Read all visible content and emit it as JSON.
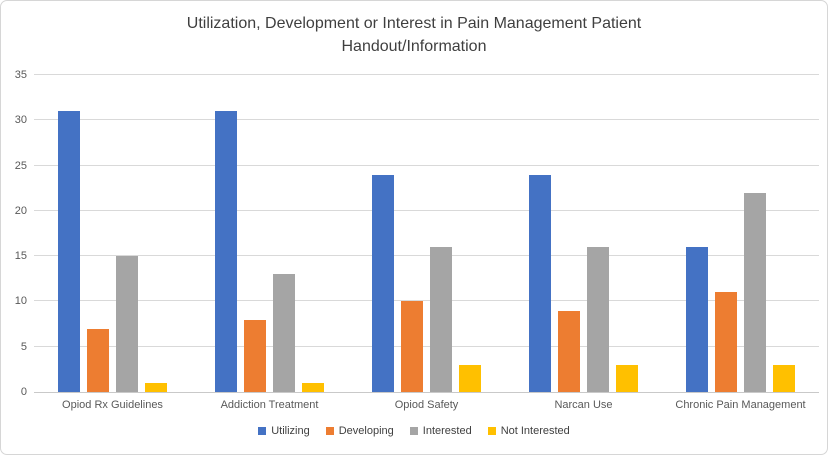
{
  "chart_data": {
    "type": "bar",
    "title": "Utilization, Development or Interest in Pain Management Patient Handout/Information",
    "title_lines": [
      "Utilization, Development or Interest in Pain Management Patient",
      "Handout/Information"
    ],
    "categories": [
      "Opiod Rx Guidelines",
      "Addiction Treatment",
      "Opiod Safety",
      "Narcan Use",
      "Chronic Pain Management"
    ],
    "series": [
      {
        "name": "Utilizing",
        "color": "#4472C4",
        "values": [
          31,
          31,
          24,
          24,
          16
        ]
      },
      {
        "name": "Developing",
        "color": "#ED7D31",
        "values": [
          7,
          8,
          10,
          9,
          11
        ]
      },
      {
        "name": "Interested",
        "color": "#A5A5A5",
        "values": [
          15,
          13,
          16,
          16,
          22
        ]
      },
      {
        "name": "Not Interested",
        "color": "#FFC000",
        "values": [
          1,
          1,
          3,
          3,
          3
        ]
      }
    ],
    "xlabel": "",
    "ylabel": "",
    "ylim": [
      0,
      35
    ],
    "yticks": [
      0,
      5,
      10,
      15,
      20,
      25,
      30,
      35
    ],
    "grid": true,
    "legend_position": "bottom",
    "colors": {
      "gridline": "#D9D9D9",
      "axis_line": "#C9C9C9",
      "axis_text": "#595959",
      "title_text": "#3F3F3F",
      "background": "#FFFFFF",
      "border": "#D6D6D6"
    }
  }
}
